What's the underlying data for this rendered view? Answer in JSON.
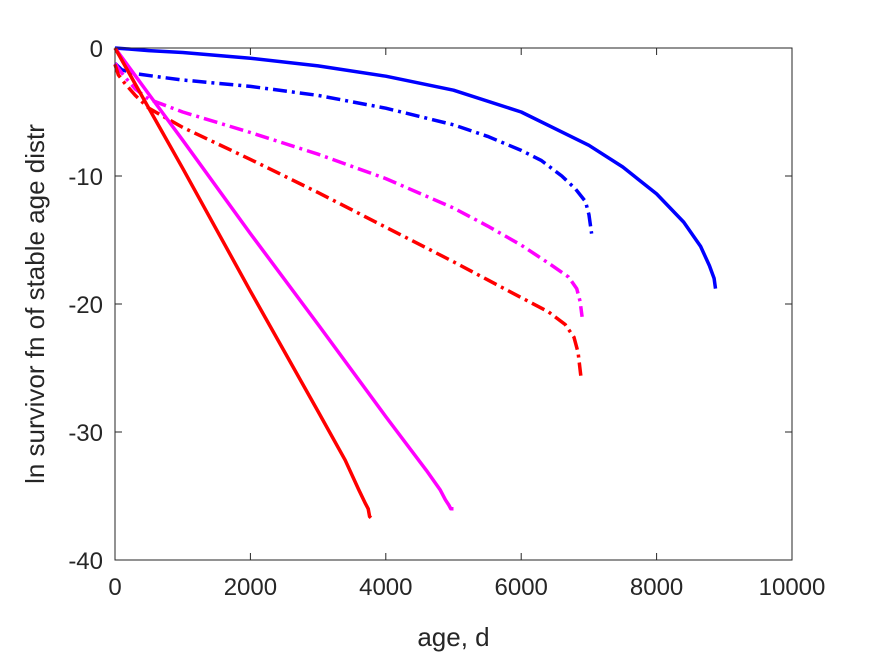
{
  "chart_data": {
    "type": "line",
    "xlabel": "age, d",
    "ylabel": "ln survivor fn of stable age distr",
    "xlim": [
      0,
      10000
    ],
    "ylim": [
      -40,
      0
    ],
    "xticks": [
      0,
      2000,
      4000,
      6000,
      8000,
      10000
    ],
    "xtick_labels": [
      "0",
      "2000",
      "4000",
      "6000",
      "8000",
      "10000"
    ],
    "yticks": [
      0,
      -10,
      -20,
      -30,
      -40
    ],
    "ytick_labels": [
      "0",
      "-10",
      "-20",
      "-30",
      "-40"
    ],
    "grid": false,
    "series": [
      {
        "color": "#0000ff",
        "style": "solid",
        "x": [
          0,
          500,
          1000,
          2000,
          3000,
          4000,
          5000,
          6000,
          7000,
          7500,
          8000,
          8400,
          8650,
          8780,
          8850,
          8870
        ],
        "y": [
          0,
          -0.2,
          -0.35,
          -0.8,
          -1.4,
          -2.2,
          -3.3,
          -5.0,
          -7.6,
          -9.3,
          -11.4,
          -13.6,
          -15.5,
          -17.0,
          -18.0,
          -18.8
        ]
      },
      {
        "color": "#0000ff",
        "style": "dashdot",
        "x": [
          0,
          100,
          300,
          700,
          1000,
          2000,
          3000,
          4000,
          5000,
          5500,
          6000,
          6300,
          6600,
          6800,
          6950,
          7000,
          7040
        ],
        "y": [
          -1.2,
          -1.7,
          -2.0,
          -2.3,
          -2.5,
          -3.0,
          -3.7,
          -4.7,
          -6.0,
          -6.9,
          -8.0,
          -8.8,
          -10.0,
          -11.0,
          -12.0,
          -13.0,
          -14.5
        ]
      },
      {
        "color": "#ff00ff",
        "style": "dashdot",
        "x": [
          0,
          50,
          150,
          300,
          500,
          1000,
          2000,
          3000,
          4000,
          5000,
          5500,
          6000,
          6400,
          6700,
          6820,
          6870,
          6900
        ],
        "y": [
          -1.2,
          -1.6,
          -2.3,
          -3.2,
          -4.0,
          -5.0,
          -6.6,
          -8.3,
          -10.2,
          -12.5,
          -13.9,
          -15.4,
          -16.8,
          -17.9,
          -18.8,
          -19.8,
          -21.0
        ]
      },
      {
        "color": "#ff0000",
        "style": "dashdot",
        "x": [
          0,
          50,
          150,
          300,
          500,
          1000,
          2000,
          3000,
          4000,
          5000,
          5500,
          6000,
          6400,
          6650,
          6780,
          6840,
          6880
        ],
        "y": [
          -1.3,
          -2.1,
          -2.8,
          -3.7,
          -4.7,
          -6.2,
          -8.7,
          -11.3,
          -14.0,
          -16.7,
          -18.1,
          -19.5,
          -20.6,
          -21.6,
          -22.6,
          -23.8,
          -25.6
        ]
      },
      {
        "color": "#ff00ff",
        "style": "solid",
        "x": [
          0,
          500,
          1000,
          2000,
          3000,
          4000,
          4600,
          4800,
          4880,
          4930,
          4960,
          5000
        ],
        "y": [
          0,
          -3.6,
          -7.2,
          -14.5,
          -21.6,
          -28.8,
          -33.0,
          -34.5,
          -35.3,
          -35.7,
          -36.0,
          -36.0
        ]
      },
      {
        "color": "#ff0000",
        "style": "solid",
        "x": [
          0,
          500,
          1000,
          1500,
          2000,
          2500,
          3000,
          3400,
          3600,
          3700,
          3740,
          3760,
          3780
        ],
        "y": [
          0,
          -4.7,
          -9.4,
          -14.2,
          -19.0,
          -23.7,
          -28.4,
          -32.2,
          -34.5,
          -35.6,
          -36.0,
          -36.6,
          -36.7
        ]
      }
    ]
  }
}
